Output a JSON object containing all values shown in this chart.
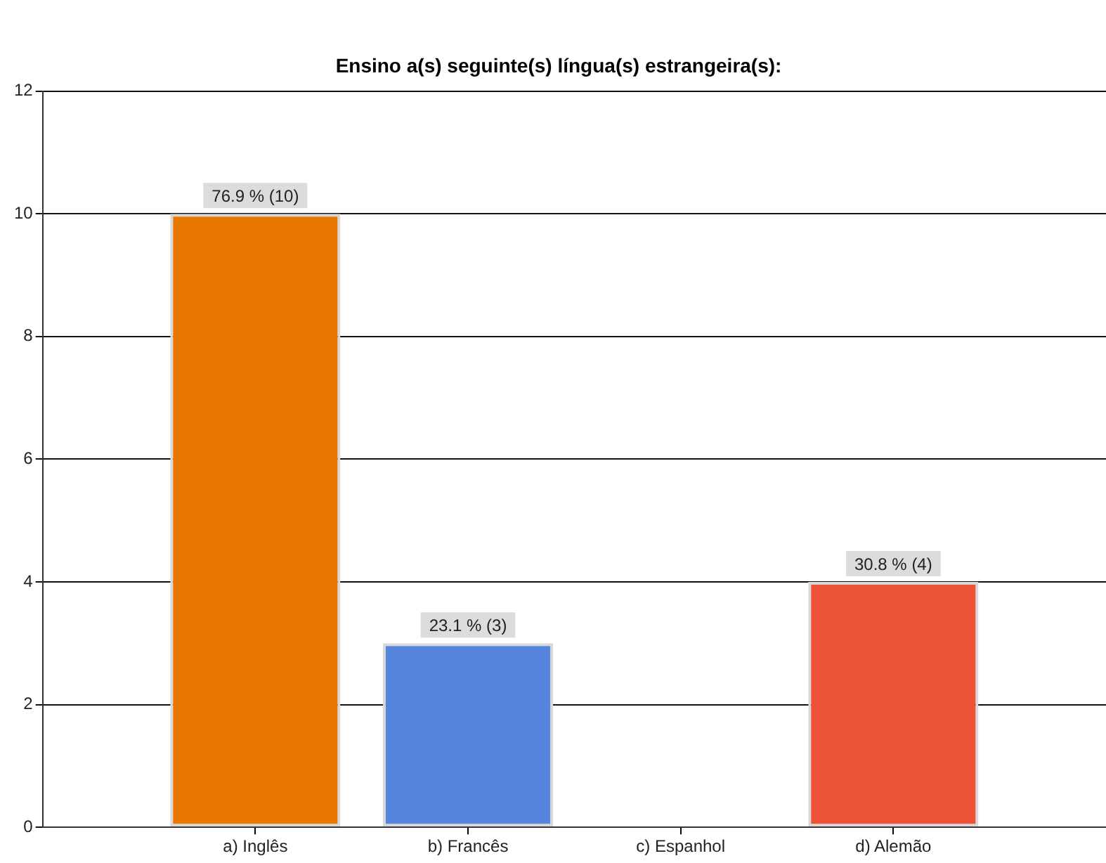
{
  "chart_data": {
    "type": "bar",
    "title": "Ensino a(s) seguinte(s) língua(s) estrangeira(s):",
    "categories": [
      "a) Inglês",
      "b) Francês",
      "c) Espanhol",
      "d) Alemão"
    ],
    "values": [
      10,
      3,
      0,
      4
    ],
    "colors": [
      "#e97800",
      "#5585dc",
      "#c0c0c0",
      "#ec5236"
    ],
    "value_labels": [
      "76.9 % (10)",
      "23.1 % (3)",
      null,
      "30.8 % (4)"
    ],
    "ylim": [
      0,
      12
    ],
    "yticks": [
      0,
      2,
      4,
      6,
      8,
      10,
      12
    ],
    "grid": "y"
  }
}
